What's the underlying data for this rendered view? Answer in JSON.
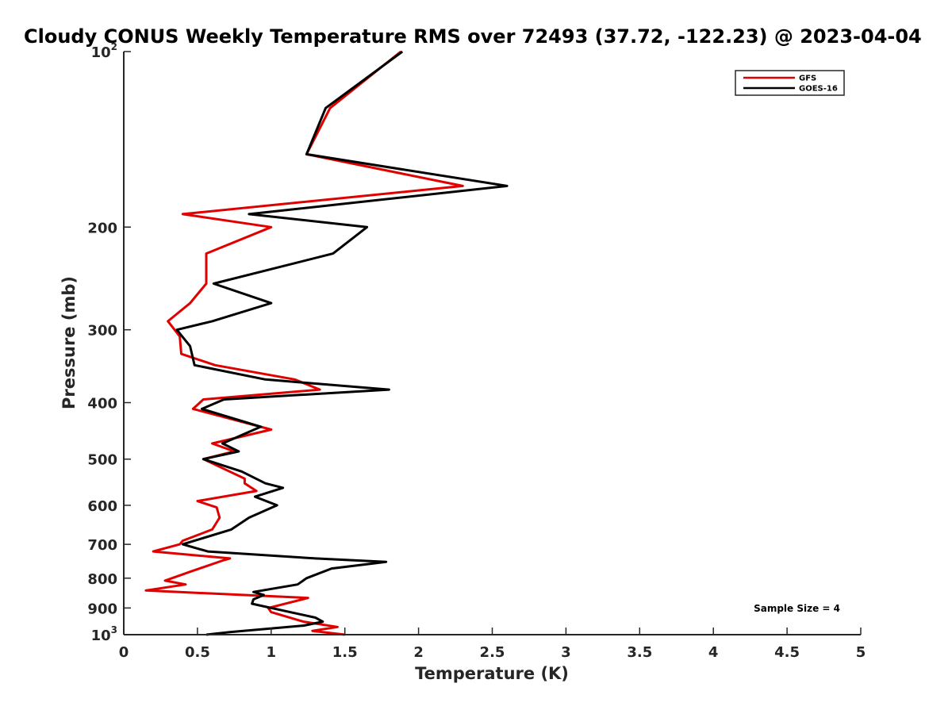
{
  "chart_data": {
    "type": "line",
    "title": "Cloudy CONUS Weekly Temperature RMS over 72493 (37.72, -122.23) @ 2023-04-04",
    "xlabel": "Temperature (K)",
    "ylabel": "Pressure (mb)",
    "xlim": [
      0,
      5
    ],
    "ylim": [
      100,
      1000
    ],
    "y_scale": "log",
    "y_reversed": true,
    "x_ticks": [
      {
        "value": 0,
        "label": "0"
      },
      {
        "value": 0.5,
        "label": "0.5"
      },
      {
        "value": 1,
        "label": "1"
      },
      {
        "value": 1.5,
        "label": "1.5"
      },
      {
        "value": 2,
        "label": "2"
      },
      {
        "value": 2.5,
        "label": "2.5"
      },
      {
        "value": 3,
        "label": "3"
      },
      {
        "value": 3.5,
        "label": "3.5"
      },
      {
        "value": 4,
        "label": "4"
      },
      {
        "value": 4.5,
        "label": "4.5"
      },
      {
        "value": 5,
        "label": "5"
      }
    ],
    "y_ticks": [
      {
        "value": 100,
        "base": "10",
        "exp": "2"
      },
      {
        "value": 200,
        "base": "200",
        "exp": ""
      },
      {
        "value": 300,
        "base": "300",
        "exp": ""
      },
      {
        "value": 400,
        "base": "400",
        "exp": ""
      },
      {
        "value": 500,
        "base": "500",
        "exp": ""
      },
      {
        "value": 600,
        "base": "600",
        "exp": ""
      },
      {
        "value": 700,
        "base": "700",
        "exp": ""
      },
      {
        "value": 800,
        "base": "800",
        "exp": ""
      },
      {
        "value": 900,
        "base": "900",
        "exp": ""
      },
      {
        "value": 1000,
        "base": "10",
        "exp": "3"
      }
    ],
    "grid": false,
    "legend_position": "top-right",
    "annotation": "Sample Size = 4",
    "series": [
      {
        "name": "GFS",
        "color": "#e00000",
        "points": [
          [
            1.88,
            100
          ],
          [
            1.4,
            125
          ],
          [
            1.24,
            150
          ],
          [
            2.3,
            170
          ],
          [
            0.4,
            190
          ],
          [
            1.0,
            200
          ],
          [
            0.56,
            222
          ],
          [
            0.56,
            250
          ],
          [
            0.45,
            270
          ],
          [
            0.3,
            290
          ],
          [
            0.38,
            308
          ],
          [
            0.39,
            330
          ],
          [
            0.62,
            345
          ],
          [
            1.16,
            365
          ],
          [
            1.33,
            380
          ],
          [
            0.54,
            395
          ],
          [
            0.47,
            410
          ],
          [
            1.0,
            445
          ],
          [
            0.6,
            470
          ],
          [
            0.75,
            485
          ],
          [
            0.54,
            500
          ],
          [
            0.82,
            540
          ],
          [
            0.82,
            550
          ],
          [
            0.9,
            567
          ],
          [
            0.5,
            590
          ],
          [
            0.63,
            605
          ],
          [
            0.65,
            630
          ],
          [
            0.6,
            660
          ],
          [
            0.4,
            690
          ],
          [
            0.38,
            700
          ],
          [
            0.2,
            720
          ],
          [
            0.72,
            740
          ],
          [
            0.68,
            745
          ],
          [
            0.45,
            780
          ],
          [
            0.28,
            808
          ],
          [
            0.42,
            820
          ],
          [
            0.15,
            840
          ],
          [
            1.25,
            865
          ],
          [
            0.98,
            900
          ],
          [
            1.0,
            915
          ],
          [
            1.22,
            950
          ],
          [
            1.45,
            970
          ],
          [
            1.28,
            985
          ],
          [
            1.5,
            1000
          ]
        ]
      },
      {
        "name": "GOES-16",
        "color": "#000000",
        "points": [
          [
            1.89,
            100
          ],
          [
            1.37,
            125
          ],
          [
            1.24,
            150
          ],
          [
            2.6,
            170
          ],
          [
            0.85,
            190
          ],
          [
            1.65,
            200
          ],
          [
            1.42,
            222
          ],
          [
            0.61,
            250
          ],
          [
            1.0,
            270
          ],
          [
            0.6,
            290
          ],
          [
            0.36,
            300
          ],
          [
            0.45,
            320
          ],
          [
            0.48,
            345
          ],
          [
            0.96,
            365
          ],
          [
            1.8,
            380
          ],
          [
            0.68,
            395
          ],
          [
            0.53,
            410
          ],
          [
            0.93,
            440
          ],
          [
            0.67,
            470
          ],
          [
            0.78,
            485
          ],
          [
            0.54,
            500
          ],
          [
            0.8,
            525
          ],
          [
            0.96,
            550
          ],
          [
            1.08,
            560
          ],
          [
            0.89,
            580
          ],
          [
            1.04,
            600
          ],
          [
            0.85,
            630
          ],
          [
            0.73,
            660
          ],
          [
            0.4,
            700
          ],
          [
            0.57,
            720
          ],
          [
            1.3,
            740
          ],
          [
            1.78,
            750
          ],
          [
            1.41,
            770
          ],
          [
            1.24,
            800
          ],
          [
            1.18,
            820
          ],
          [
            0.88,
            845
          ],
          [
            0.95,
            855
          ],
          [
            0.88,
            870
          ],
          [
            0.87,
            885
          ],
          [
            1.3,
            935
          ],
          [
            1.35,
            950
          ],
          [
            1.22,
            965
          ],
          [
            0.72,
            990
          ],
          [
            0.56,
            1000
          ]
        ]
      }
    ]
  }
}
